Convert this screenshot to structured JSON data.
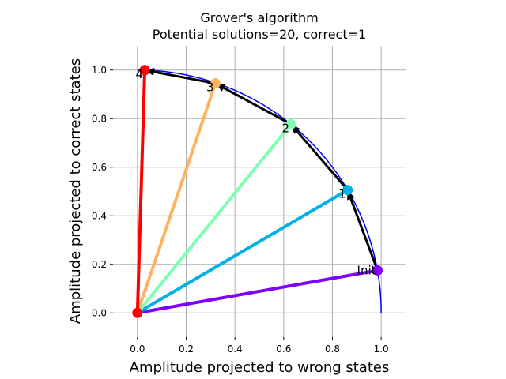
{
  "chart_data": {
    "type": "line",
    "title": "Grover's algorithm",
    "subtitle": "Potential solutions=20, correct=1",
    "xlabel": "Amplitude projected to wrong states",
    "ylabel": "Amplitude projected to correct states",
    "xlim": [
      -0.1,
      1.1
    ],
    "ylim": [
      -0.1,
      1.1
    ],
    "xticks": [
      "0.0",
      "0.2",
      "0.4",
      "0.6",
      "0.8",
      "1.0"
    ],
    "yticks": [
      "0.0",
      "0.2",
      "0.4",
      "0.6",
      "0.8",
      "1.0"
    ],
    "grid": true,
    "origin": [
      0,
      0
    ],
    "circle_color": "#0000ff",
    "arrow_color": "#000000",
    "states": [
      {
        "label": "Init",
        "x": 0.985,
        "y": 0.175,
        "color": "#7f00ff"
      },
      {
        "label": "1",
        "x": 0.862,
        "y": 0.506,
        "color": "#00b0e6"
      },
      {
        "label": "2",
        "x": 0.63,
        "y": 0.777,
        "color": "#80ffb4"
      },
      {
        "label": "3",
        "x": 0.32,
        "y": 0.945,
        "color": "#ffb360"
      },
      {
        "label": "4",
        "x": 0.03,
        "y": 1.0,
        "color": "#ff0000"
      }
    ]
  }
}
